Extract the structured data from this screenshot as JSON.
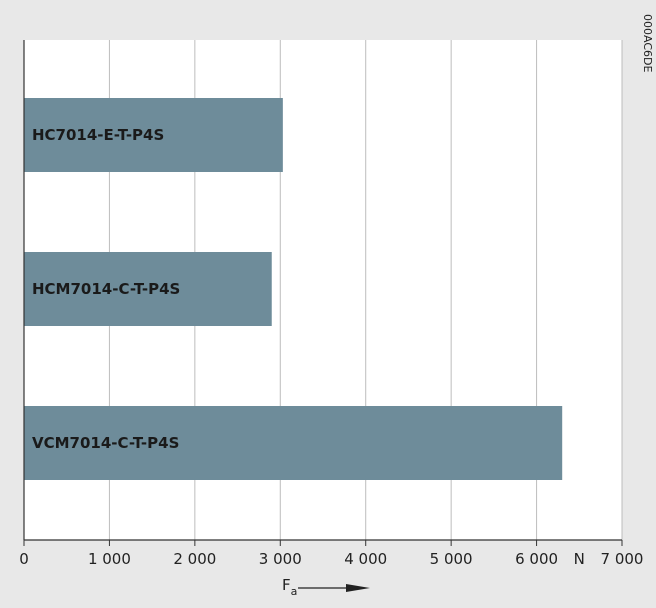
{
  "chart_data": {
    "type": "bar",
    "orientation": "horizontal",
    "categories": [
      "HC7014-E-T-P4S",
      "HCM7014-C-T-P4S",
      "VCM7014-C-T-P4S"
    ],
    "values": [
      3030,
      2900,
      6300
    ],
    "title": "",
    "xlabel": "F",
    "xlabel_subscript": "a",
    "x_unit": "N",
    "xlim": [
      0,
      7000
    ],
    "xticks": [
      0,
      1000,
      2000,
      3000,
      4000,
      5000,
      6000,
      7000
    ],
    "xtick_labels": [
      "0",
      "1 000",
      "2 000",
      "3 000",
      "4 000",
      "5 000",
      "6 000",
      "7 000"
    ],
    "grid": true,
    "bar_color": "#6e8c9a",
    "frame_color": "#e8e8e8",
    "side_code": "000AC6DE"
  }
}
